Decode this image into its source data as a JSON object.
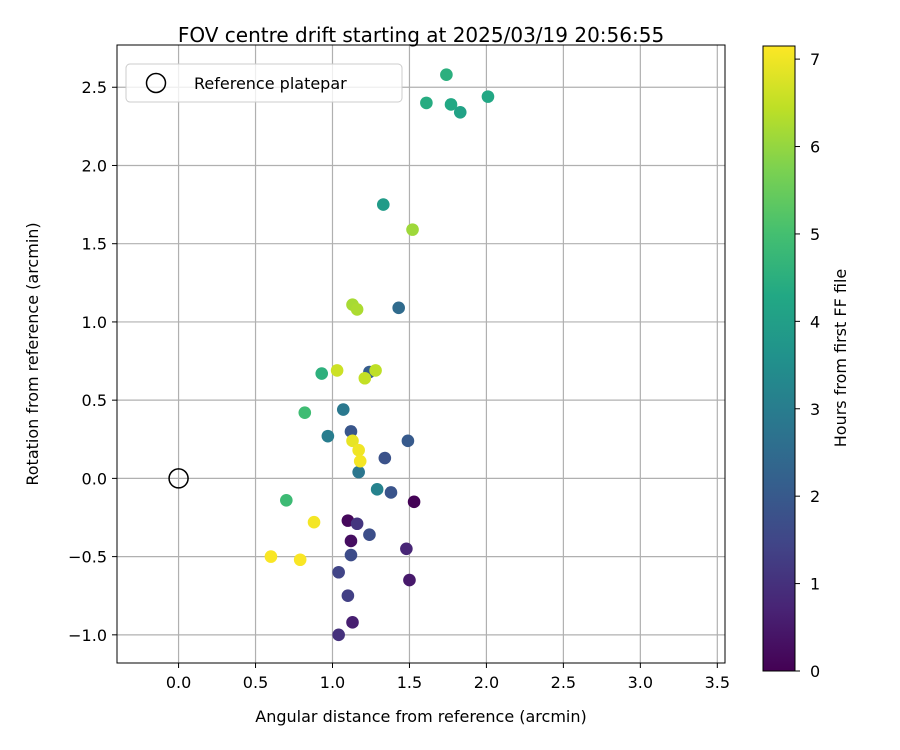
{
  "chart_data": {
    "type": "scatter",
    "title": "FOV centre drift starting at 2025/03/19 20:56:55",
    "xlabel": "Angular distance from reference (arcmin)",
    "ylabel": "Rotation from reference (arcmin)",
    "xlim": [
      -0.4,
      3.55
    ],
    "ylim": [
      -1.18,
      2.77
    ],
    "xticks": [
      "0.0",
      "0.5",
      "1.0",
      "1.5",
      "2.0",
      "2.5",
      "3.0",
      "3.5"
    ],
    "xtick_values": [
      0.0,
      0.5,
      1.0,
      1.5,
      2.0,
      2.5,
      3.0,
      3.5
    ],
    "yticks": [
      "−1.0",
      "−0.5",
      "0.0",
      "0.5",
      "1.0",
      "1.5",
      "2.0",
      "2.5"
    ],
    "ytick_values": [
      -1.0,
      -0.5,
      0.0,
      0.5,
      1.0,
      1.5,
      2.0,
      2.5
    ],
    "grid": true,
    "legend": {
      "label": "Reference platepar",
      "placement": "top-left"
    },
    "reference_point": {
      "x": 0.0,
      "y": 0.0
    },
    "colorbar": {
      "label": "Hours from first FF file",
      "range": [
        0,
        7.15
      ],
      "ticks": [
        "0",
        "1",
        "2",
        "3",
        "4",
        "5",
        "6",
        "7"
      ],
      "tick_values": [
        0,
        1,
        2,
        3,
        4,
        5,
        6,
        7
      ],
      "colormap": "viridis"
    },
    "points": [
      {
        "x": 1.53,
        "y": -0.15,
        "t": 0.05
      },
      {
        "x": 1.1,
        "y": -0.27,
        "t": 0.15
      },
      {
        "x": 1.12,
        "y": -0.4,
        "t": 0.25
      },
      {
        "x": 1.5,
        "y": -0.65,
        "t": 0.5
      },
      {
        "x": 1.13,
        "y": -0.92,
        "t": 0.6
      },
      {
        "x": 1.48,
        "y": -0.45,
        "t": 0.75
      },
      {
        "x": 1.04,
        "y": -1.0,
        "t": 1.0
      },
      {
        "x": 1.16,
        "y": -0.29,
        "t": 1.1
      },
      {
        "x": 1.1,
        "y": -0.75,
        "t": 1.35
      },
      {
        "x": 1.04,
        "y": -0.6,
        "t": 1.45
      },
      {
        "x": 1.12,
        "y": -0.49,
        "t": 1.65
      },
      {
        "x": 1.24,
        "y": -0.36,
        "t": 1.7
      },
      {
        "x": 1.34,
        "y": 0.13,
        "t": 1.8
      },
      {
        "x": 1.38,
        "y": -0.09,
        "t": 1.85
      },
      {
        "x": 1.12,
        "y": 0.3,
        "t": 1.9
      },
      {
        "x": 1.49,
        "y": 0.24,
        "t": 2.0
      },
      {
        "x": 1.24,
        "y": 0.68,
        "t": 2.1
      },
      {
        "x": 1.43,
        "y": 1.09,
        "t": 2.5
      },
      {
        "x": 1.17,
        "y": 0.04,
        "t": 2.8
      },
      {
        "x": 1.07,
        "y": 0.44,
        "t": 2.85
      },
      {
        "x": 0.97,
        "y": 0.27,
        "t": 3.0
      },
      {
        "x": 1.29,
        "y": -0.07,
        "t": 3.15
      },
      {
        "x": 1.33,
        "y": 1.75,
        "t": 3.9
      },
      {
        "x": 1.83,
        "y": 2.34,
        "t": 4.1
      },
      {
        "x": 2.01,
        "y": 2.44,
        "t": 4.25
      },
      {
        "x": 1.77,
        "y": 2.39,
        "t": 4.3
      },
      {
        "x": 1.61,
        "y": 2.4,
        "t": 4.4
      },
      {
        "x": 1.74,
        "y": 2.58,
        "t": 4.5
      },
      {
        "x": 0.93,
        "y": 0.67,
        "t": 4.55
      },
      {
        "x": 0.7,
        "y": -0.14,
        "t": 4.85
      },
      {
        "x": 0.82,
        "y": 0.42,
        "t": 4.9
      },
      {
        "x": 1.52,
        "y": 1.59,
        "t": 6.1
      },
      {
        "x": 1.13,
        "y": 1.11,
        "t": 6.2
      },
      {
        "x": 1.16,
        "y": 1.08,
        "t": 6.25
      },
      {
        "x": 1.28,
        "y": 0.69,
        "t": 6.45
      },
      {
        "x": 1.21,
        "y": 0.64,
        "t": 6.5
      },
      {
        "x": 1.03,
        "y": 0.69,
        "t": 6.6
      },
      {
        "x": 1.13,
        "y": 0.24,
        "t": 6.9
      },
      {
        "x": 1.17,
        "y": 0.18,
        "t": 7.0
      },
      {
        "x": 1.18,
        "y": 0.11,
        "t": 7.05
      },
      {
        "x": 0.88,
        "y": -0.28,
        "t": 7.05
      },
      {
        "x": 0.6,
        "y": -0.5,
        "t": 7.1
      },
      {
        "x": 0.79,
        "y": -0.52,
        "t": 7.1
      }
    ]
  }
}
